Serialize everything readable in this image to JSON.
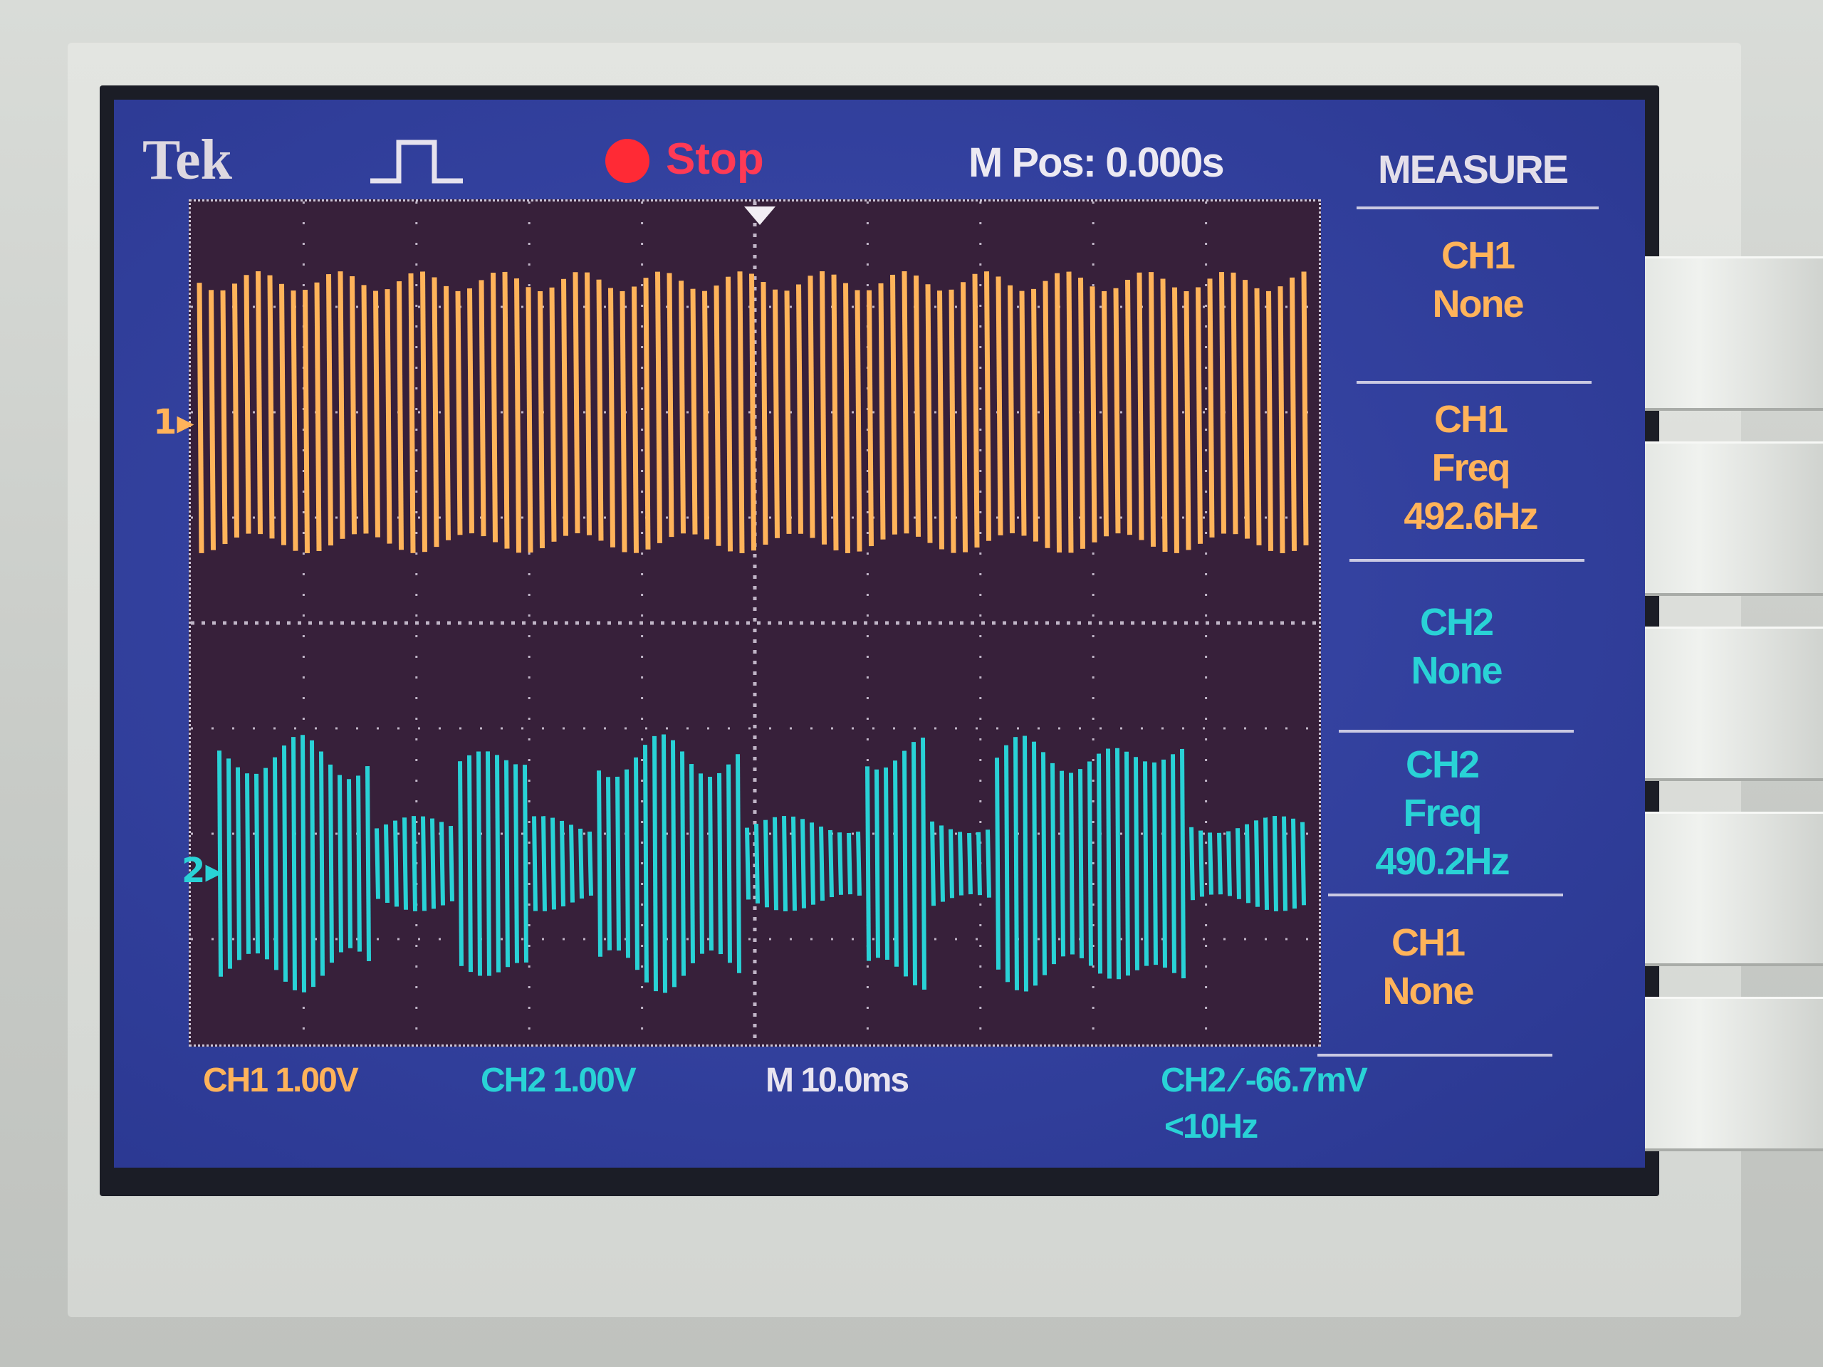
{
  "header": {
    "brand": "Tek",
    "run_status": "Stop",
    "horizontal_position": "M Pos: 0.000s"
  },
  "measure_menu": {
    "title": "MEASURE",
    "slots": [
      {
        "channel": "CH1",
        "type": "None",
        "value": ""
      },
      {
        "channel": "CH1",
        "type": "Freq",
        "value": "492.6Hz"
      },
      {
        "channel": "CH2",
        "type": "None",
        "value": ""
      },
      {
        "channel": "CH2",
        "type": "Freq",
        "value": "490.2Hz"
      },
      {
        "channel": "CH1",
        "type": "None",
        "value": ""
      }
    ]
  },
  "channel_markers": {
    "ch1": "1",
    "ch2": "2"
  },
  "footer": {
    "ch1_scale": "CH1  1.00V",
    "ch2_scale": "CH2  1.00V",
    "timebase": "M 10.0ms",
    "trigger": "CH2 ∕ -66.7mV",
    "trigger_freq": "<10Hz"
  },
  "colors": {
    "ch1": "#ffb35a",
    "ch2": "#29d2d6",
    "screen_bg": "#3442a0",
    "graticule_bg": "#37203a",
    "stop": "#ff2a35"
  },
  "icons": {
    "trigger_icon": "pulse-trigger-icon",
    "status_icon": "stop-dot-icon"
  }
}
